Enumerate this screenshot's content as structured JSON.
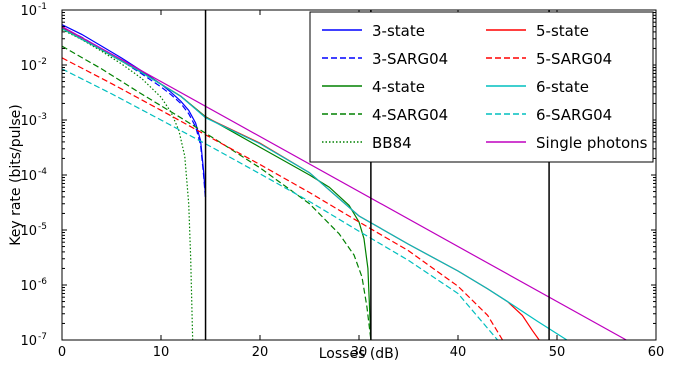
{
  "chart_data": {
    "type": "line",
    "xlabel": "Losses (dB)",
    "ylabel": "Key rate (bits/pulse)",
    "xlim": [
      0,
      60
    ],
    "ylim": [
      1e-07,
      0.1
    ],
    "yscale": "log",
    "grid": false,
    "legend_position": "top-right",
    "x_ticks": [
      0,
      10,
      20,
      30,
      40,
      50,
      60
    ],
    "x_tick_labels": [
      "0",
      "10",
      "20",
      "30",
      "40",
      "50",
      "60"
    ],
    "y_ticks": [
      1e-07,
      1e-06,
      1e-05,
      0.0001,
      0.001,
      0.01,
      0.1
    ],
    "y_tick_labels": [
      {
        "base": "10",
        "exp": "-7"
      },
      {
        "base": "10",
        "exp": "-6"
      },
      {
        "base": "10",
        "exp": "-5"
      },
      {
        "base": "10",
        "exp": "-4"
      },
      {
        "base": "10",
        "exp": "-3"
      },
      {
        "base": "10",
        "exp": "-2"
      },
      {
        "base": "10",
        "exp": "-1"
      }
    ],
    "vertical_lines": [
      14.5,
      31.2,
      49.2
    ],
    "series": [
      {
        "name": "3-state",
        "color": "#0000ff",
        "dash": "solid",
        "x": [
          0,
          2,
          4,
          6,
          8,
          10,
          11,
          12,
          12.8,
          13.5,
          14,
          14.3,
          14.5
        ],
        "y": [
          0.054,
          0.036,
          0.022,
          0.0135,
          0.0079,
          0.0045,
          0.0032,
          0.0022,
          0.0015,
          0.00088,
          0.00042,
          0.00012,
          4e-05
        ]
      },
      {
        "name": "3-SARG04",
        "color": "#0000ff",
        "dash": "dashed",
        "x": [
          0,
          2,
          4,
          6,
          8,
          10,
          11,
          12,
          12.8,
          13.5,
          14,
          14.3,
          14.5
        ],
        "y": [
          0.048,
          0.032,
          0.0195,
          0.012,
          0.007,
          0.004,
          0.0029,
          0.002,
          0.0013,
          0.00075,
          0.00035,
          0.0001,
          3.5e-05
        ]
      },
      {
        "name": "4-state",
        "color": "#008000",
        "dash": "solid",
        "x": [
          0,
          4,
          8,
          12,
          14.5,
          20,
          25,
          27,
          29,
          30,
          30.5,
          30.9,
          31.2
        ],
        "y": [
          0.046,
          0.0188,
          0.0074,
          0.0027,
          0.00115,
          0.00032,
          0.0001,
          6e-05,
          2.8e-05,
          1.4e-05,
          7e-06,
          2e-06,
          1e-07
        ]
      },
      {
        "name": "4-SARG04",
        "color": "#008000",
        "dash": "dashed",
        "x": [
          0,
          4,
          8,
          12,
          16,
          20,
          25,
          28,
          29.5,
          30.3,
          30.8,
          31.2
        ],
        "y": [
          0.022,
          0.0085,
          0.003,
          0.0011,
          0.00039,
          0.000135,
          3e-05,
          8.5e-06,
          3.5e-06,
          1.4e-06,
          4e-07,
          1e-07
        ]
      },
      {
        "name": "BB84",
        "color": "#008000",
        "dash": "dotted",
        "x": [
          0,
          2,
          4,
          6,
          8,
          10,
          11,
          11.8,
          12.4,
          12.8,
          13.0,
          13.2
        ],
        "y": [
          0.044,
          0.029,
          0.0178,
          0.0105,
          0.0058,
          0.0026,
          0.0014,
          0.00065,
          0.00022,
          3e-05,
          3e-06,
          1e-07
        ]
      },
      {
        "name": "5-state",
        "color": "#ff0000",
        "dash": "solid",
        "x": [
          0,
          4,
          8,
          12,
          14.5,
          20,
          25,
          30,
          35,
          40,
          43,
          45,
          46.5,
          47.5,
          48.2
        ],
        "y": [
          0.047,
          0.0192,
          0.0075,
          0.0027,
          0.00112,
          0.00038,
          0.00011,
          1.8e-05,
          5.5e-06,
          1.8e-06,
          8.5e-07,
          5e-07,
          2.8e-07,
          1.5e-07,
          1e-07
        ]
      },
      {
        "name": "5-SARG04",
        "color": "#ff0000",
        "dash": "dashed",
        "x": [
          0,
          5,
          10,
          15,
          20,
          25,
          30,
          35,
          40,
          43,
          44.5
        ],
        "y": [
          0.0135,
          0.0046,
          0.0015,
          0.00048,
          0.000155,
          4.8e-05,
          1.4e-05,
          4.2e-06,
          9.5e-07,
          2.8e-07,
          1e-07
        ]
      },
      {
        "name": "6-state",
        "color": "#00bfbf",
        "dash": "solid",
        "x": [
          0,
          4,
          8,
          12,
          14.5,
          20,
          25,
          30,
          35,
          40,
          43,
          45,
          48,
          51
        ],
        "y": [
          0.046,
          0.019,
          0.0074,
          0.0027,
          0.0011,
          0.00037,
          0.00011,
          1.8e-05,
          5.5e-06,
          1.8e-06,
          8.5e-07,
          5e-07,
          2.2e-07,
          1e-07
        ]
      },
      {
        "name": "6-SARG04",
        "color": "#00bfbf",
        "dash": "dashed",
        "x": [
          0,
          5,
          10,
          15,
          20,
          25,
          30,
          35,
          40,
          44
        ],
        "y": [
          0.0085,
          0.003,
          0.001,
          0.00033,
          0.000105,
          3.3e-05,
          9.5e-06,
          2.8e-06,
          7e-07,
          1e-07
        ]
      },
      {
        "name": "Single photons",
        "color": "#bf00bf",
        "dash": "solid",
        "x": [
          0,
          57
        ],
        "y": [
          0.05,
          1e-07
        ]
      }
    ]
  }
}
